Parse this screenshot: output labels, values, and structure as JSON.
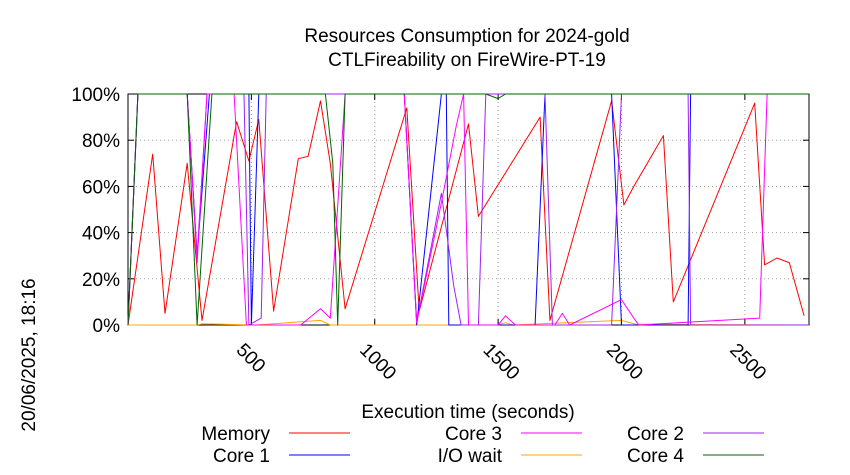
{
  "chart_data": {
    "type": "line",
    "title": "Resources Consumption for 2024-gold",
    "subtitle": "CTLFireability on FireWire-PT-19",
    "xlabel": "Execution time (seconds)",
    "ylabel": "",
    "side_label": "20/06/2025, 18:16",
    "xlim": [
      0,
      2760
    ],
    "ylim": [
      0,
      100
    ],
    "x_ticks": [
      500,
      1000,
      1500,
      2000,
      2500
    ],
    "y_ticks": [
      0,
      20,
      40,
      60,
      80,
      100
    ],
    "y_tick_labels": [
      "0%",
      "20%",
      "40%",
      "60%",
      "80%",
      "100%"
    ],
    "grid": true,
    "legend_position": "bottom",
    "series": [
      {
        "name": "Memory",
        "color": "#ff0000",
        "points": [
          [
            0,
            0
          ],
          [
            100,
            74
          ],
          [
            150,
            5
          ],
          [
            240,
            70
          ],
          [
            300,
            2
          ],
          [
            440,
            88
          ],
          [
            490,
            71
          ],
          [
            530,
            89
          ],
          [
            590,
            6
          ],
          [
            690,
            72
          ],
          [
            730,
            73
          ],
          [
            780,
            97
          ],
          [
            820,
            70
          ],
          [
            880,
            7
          ],
          [
            1130,
            94
          ],
          [
            1180,
            6
          ],
          [
            1380,
            87
          ],
          [
            1420,
            47
          ],
          [
            1670,
            90
          ],
          [
            1710,
            2
          ],
          [
            1960,
            97
          ],
          [
            2010,
            52
          ],
          [
            2050,
            60
          ],
          [
            2170,
            82
          ],
          [
            2210,
            10
          ],
          [
            2540,
            96
          ],
          [
            2580,
            26
          ],
          [
            2630,
            29
          ],
          [
            2680,
            27
          ],
          [
            2740,
            4
          ]
        ]
      },
      {
        "name": "I/O wait",
        "color": "#ffa500",
        "points": [
          [
            0,
            0
          ],
          [
            280,
            0
          ],
          [
            300,
            0.5
          ],
          [
            520,
            0
          ],
          [
            780,
            2
          ],
          [
            820,
            0
          ],
          [
            1500,
            0
          ],
          [
            1530,
            1
          ],
          [
            1560,
            0
          ],
          [
            2000,
            2
          ],
          [
            2060,
            0.3
          ],
          [
            2700,
            0
          ]
        ]
      },
      {
        "name": "Core 1",
        "color": "#0000ff",
        "points": [
          [
            0,
            0
          ],
          [
            40,
            100
          ],
          [
            240,
            100
          ],
          [
            280,
            30
          ],
          [
            330,
            100
          ],
          [
            490,
            100
          ],
          [
            500,
            0
          ],
          [
            530,
            100
          ],
          [
            1120,
            100
          ],
          [
            1170,
            0
          ],
          [
            1270,
            100
          ],
          [
            1290,
            100
          ],
          [
            1300,
            0
          ],
          [
            1650,
            0
          ],
          [
            1690,
            100
          ],
          [
            1960,
            100
          ],
          [
            2000,
            0
          ],
          [
            2270,
            0
          ],
          [
            2280,
            100
          ],
          [
            2700,
            100
          ],
          [
            2760,
            100
          ]
        ]
      },
      {
        "name": "Core 2",
        "color": "#a020f0",
        "points": [
          [
            0,
            0
          ],
          [
            40,
            100
          ],
          [
            240,
            100
          ],
          [
            280,
            30
          ],
          [
            320,
            100
          ],
          [
            470,
            100
          ],
          [
            490,
            0
          ],
          [
            540,
            3
          ],
          [
            560,
            100
          ],
          [
            1120,
            100
          ],
          [
            1170,
            1
          ],
          [
            1270,
            57
          ],
          [
            1320,
            17
          ],
          [
            1350,
            0
          ],
          [
            1420,
            0
          ],
          [
            1450,
            100
          ],
          [
            1690,
            100
          ],
          [
            1720,
            0
          ],
          [
            1960,
            0
          ],
          [
            2000,
            100
          ],
          [
            2270,
            100
          ],
          [
            2280,
            0
          ],
          [
            2700,
            0
          ],
          [
            2760,
            0
          ]
        ]
      },
      {
        "name": "Core 3",
        "color": "#ff00ff",
        "points": [
          [
            0,
            0
          ],
          [
            40,
            100
          ],
          [
            240,
            100
          ],
          [
            280,
            27
          ],
          [
            320,
            100
          ],
          [
            430,
            100
          ],
          [
            480,
            0
          ],
          [
            700,
            0
          ],
          [
            780,
            7
          ],
          [
            820,
            3
          ],
          [
            880,
            100
          ],
          [
            1120,
            100
          ],
          [
            1170,
            1
          ],
          [
            1270,
            53
          ],
          [
            1330,
            86
          ],
          [
            1360,
            100
          ],
          [
            1380,
            0
          ],
          [
            1500,
            0
          ],
          [
            1530,
            4
          ],
          [
            1570,
            0
          ],
          [
            1730,
            0
          ],
          [
            1760,
            5
          ],
          [
            1790,
            0
          ],
          [
            2000,
            11
          ],
          [
            2050,
            3
          ],
          [
            2070,
            0
          ],
          [
            2560,
            3
          ],
          [
            2590,
            100
          ],
          [
            2760,
            100
          ]
        ]
      },
      {
        "name": "Core 4",
        "color": "#006400",
        "points": [
          [
            0,
            0
          ],
          [
            40,
            100
          ],
          [
            240,
            100
          ],
          [
            280,
            0
          ],
          [
            340,
            100
          ],
          [
            760,
            100
          ],
          [
            800,
            100
          ],
          [
            830,
            70
          ],
          [
            850,
            0
          ],
          [
            880,
            100
          ],
          [
            1450,
            100
          ],
          [
            1500,
            98
          ],
          [
            1530,
            100
          ],
          [
            2760,
            100
          ]
        ]
      }
    ]
  }
}
